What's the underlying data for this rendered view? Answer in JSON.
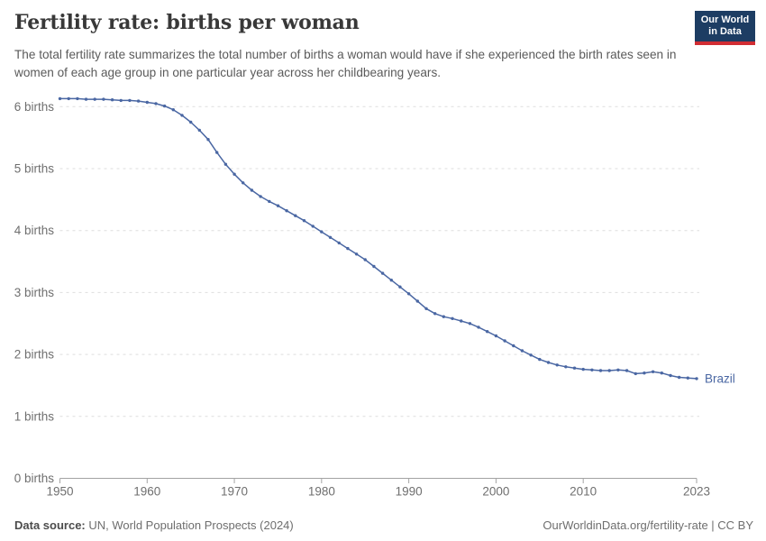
{
  "header": {
    "title": "Fertility rate: births per woman",
    "subtitle": "The total fertility rate summarizes the total number of births a woman would have if she experienced the birth rates seen in women of each age group in one particular year across her childbearing years.",
    "logo": {
      "line1": "Our World",
      "line2": "in Data"
    }
  },
  "chart_data": {
    "type": "line",
    "title": "Fertility rate: births per woman",
    "xlabel": "",
    "ylabel": "",
    "xlim": [
      1950,
      2023
    ],
    "ylim": [
      0,
      6.6
    ],
    "grid": "horizontal-dashed",
    "legend_position": "end-of-line-label",
    "x_ticks": [
      1950,
      1960,
      1970,
      1980,
      1990,
      2000,
      2010,
      2023
    ],
    "y_ticks": [
      0,
      1,
      2,
      3,
      4,
      5,
      6
    ],
    "y_tick_suffix": " births",
    "x": [
      1950,
      1951,
      1952,
      1953,
      1954,
      1955,
      1956,
      1957,
      1958,
      1959,
      1960,
      1961,
      1962,
      1963,
      1964,
      1965,
      1966,
      1967,
      1968,
      1969,
      1970,
      1971,
      1972,
      1973,
      1974,
      1975,
      1976,
      1977,
      1978,
      1979,
      1980,
      1981,
      1982,
      1983,
      1984,
      1985,
      1986,
      1987,
      1988,
      1989,
      1990,
      1991,
      1992,
      1993,
      1994,
      1995,
      1996,
      1997,
      1998,
      1999,
      2000,
      2001,
      2002,
      2003,
      2004,
      2005,
      2006,
      2007,
      2008,
      2009,
      2010,
      2011,
      2012,
      2013,
      2014,
      2015,
      2016,
      2017,
      2018,
      2019,
      2020,
      2021,
      2022,
      2023
    ],
    "series": [
      {
        "name": "Brazil",
        "end_label": "Brazil",
        "values": [
          6.13,
          6.13,
          6.13,
          6.12,
          6.12,
          6.12,
          6.11,
          6.1,
          6.1,
          6.09,
          6.07,
          6.05,
          6.01,
          5.95,
          5.86,
          5.75,
          5.62,
          5.47,
          5.26,
          5.07,
          4.91,
          4.77,
          4.65,
          4.55,
          4.47,
          4.4,
          4.32,
          4.24,
          4.16,
          4.07,
          3.98,
          3.89,
          3.8,
          3.71,
          3.62,
          3.53,
          3.42,
          3.31,
          3.2,
          3.09,
          2.98,
          2.86,
          2.74,
          2.66,
          2.61,
          2.58,
          2.54,
          2.5,
          2.44,
          2.37,
          2.3,
          2.22,
          2.14,
          2.06,
          1.99,
          1.92,
          1.87,
          1.83,
          1.8,
          1.78,
          1.76,
          1.75,
          1.74,
          1.74,
          1.75,
          1.74,
          1.69,
          1.7,
          1.72,
          1.7,
          1.66,
          1.63,
          1.62,
          1.61
        ]
      }
    ]
  },
  "footer": {
    "datasource_label": "Data source:",
    "datasource_value": " UN, World Population Prospects (2024)",
    "link": "OurWorldinData.org/fertility-rate | CC BY"
  },
  "colors": {
    "line": "#4a67a3",
    "grid": "#dedede",
    "axis": "#a3a3a3",
    "tick_label": "#6f6f6f",
    "logo_bg": "#1d3d63",
    "logo_accent": "#d12d33"
  }
}
